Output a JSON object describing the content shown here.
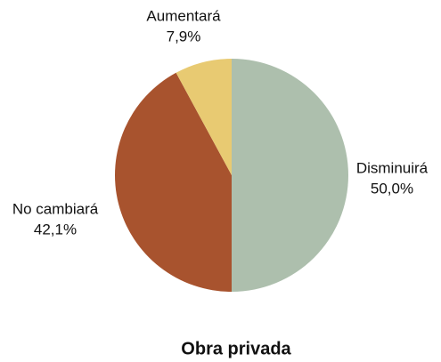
{
  "chart_data": {
    "type": "pie",
    "title": "Obra privada",
    "categories": [
      "Disminuirá",
      "No cambiará",
      "Aumentará"
    ],
    "values": [
      50.0,
      42.1,
      7.9
    ],
    "value_labels": [
      "50,0%",
      "42,1%",
      "7,9%"
    ],
    "colors": [
      "#adbfad",
      "#a8532e",
      "#e8ca72"
    ]
  }
}
